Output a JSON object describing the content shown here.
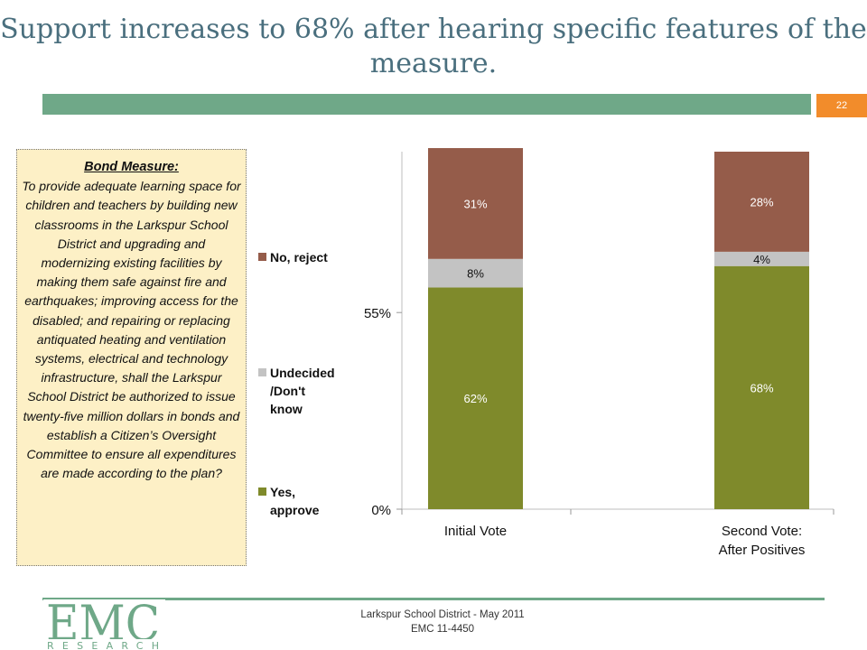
{
  "title": "Support increases to 68% after hearing specific features of the measure.",
  "page_number": "22",
  "measure": {
    "heading": "Bond Measure:",
    "text": "To provide adequate learning space for children and teachers by building new classrooms in the Larkspur School District and upgrading and modernizing existing facilities by making them safe against fire and earthquakes; improving access for the disabled; and repairing or replacing antiquated heating and ventilation systems, electrical and technology infrastructure, shall the Larkspur School District be authorized to issue twenty-five million dollars in bonds and establish a Citizen’s Oversight Committee to ensure all expenditures are made according to the plan?"
  },
  "footer": {
    "line1": "Larkspur School District - May 2011",
    "line2": "EMC 11-4450"
  },
  "logo": {
    "main": "EMC",
    "sub": "RESEARCH"
  },
  "colors": {
    "title": "#4a6f7e",
    "band": "#6fa888",
    "page_badge": "#f28c2b",
    "yes": "#7f8a2b",
    "undecided": "#c3c3c3",
    "no": "#955c4a",
    "box_fill": "#fdf0c6"
  },
  "chart_data": {
    "type": "bar",
    "stacked": true,
    "categories": [
      "Initial Vote",
      "Second Vote:\nAfter Positives"
    ],
    "series": [
      {
        "name": "Yes, approve",
        "values": [
          62,
          68
        ],
        "labels": [
          "62%",
          "68%"
        ],
        "color": "#7f8a2b"
      },
      {
        "name": "Undecided /Don't know",
        "values": [
          8,
          4
        ],
        "labels": [
          "8%",
          "4%"
        ],
        "color": "#c3c3c3"
      },
      {
        "name": "No, reject",
        "values": [
          31,
          28
        ],
        "labels": [
          "31%",
          "28%"
        ],
        "color": "#955c4a"
      }
    ],
    "y_ticks": [
      {
        "value": 0,
        "label": "0%"
      },
      {
        "value": 55,
        "label": "55%"
      }
    ],
    "ylim": [
      0,
      100
    ],
    "legend": {
      "placement": "left",
      "entries": [
        {
          "lines": [
            "No, reject"
          ],
          "color": "#955c4a"
        },
        {
          "lines": [
            "Undecided",
            "/Don't",
            "know"
          ],
          "color": "#c3c3c3"
        },
        {
          "lines": [
            "Yes,",
            "approve"
          ],
          "color": "#7f8a2b"
        }
      ]
    },
    "grid": false
  }
}
